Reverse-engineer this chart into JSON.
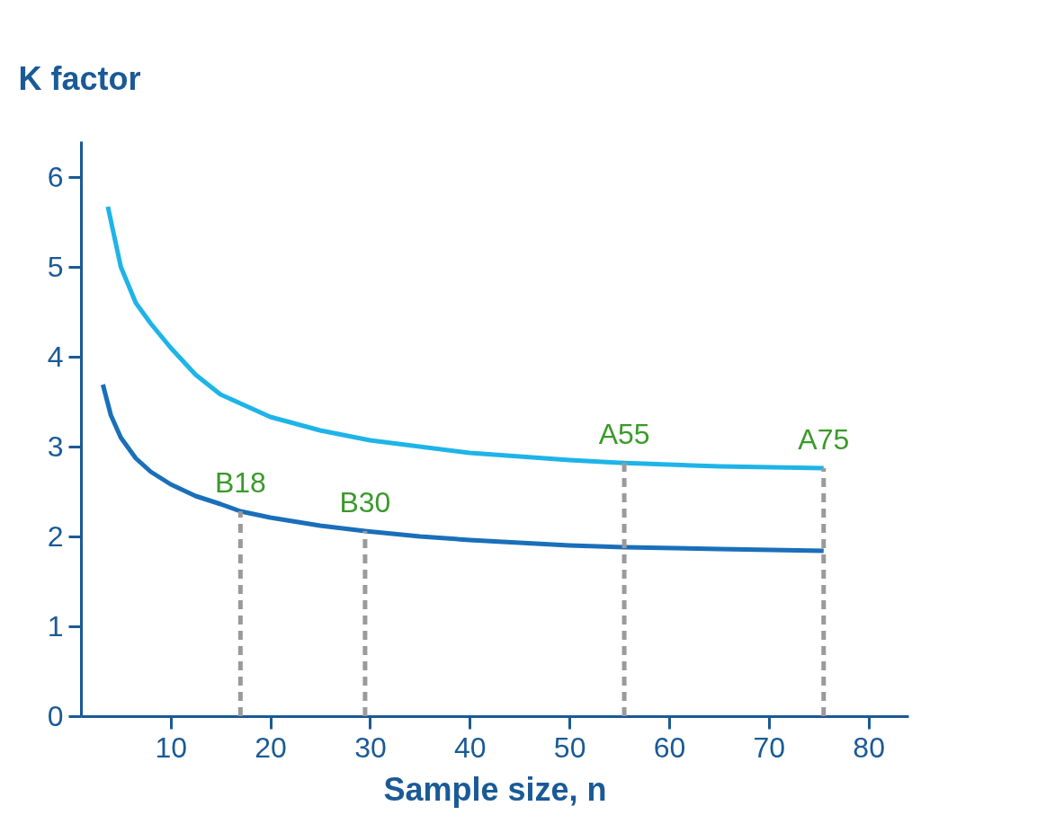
{
  "chart_data": {
    "type": "line",
    "xlabel": "Sample size, n",
    "ylabel": "K factor",
    "xlim": [
      1,
      84
    ],
    "ylim": [
      0,
      6.4
    ],
    "xticks": [
      10,
      20,
      30,
      40,
      50,
      60,
      70,
      80
    ],
    "yticks": [
      0,
      1,
      2,
      3,
      4,
      5,
      6
    ],
    "grid": false,
    "legend": false,
    "marker": "none",
    "series": [
      {
        "color": "#1eb4e8",
        "line_style": "solid",
        "x": [
          3.7,
          5,
          6.5,
          8,
          10,
          12.5,
          15,
          20,
          25,
          30,
          40,
          50,
          55,
          65,
          75.5
        ],
        "values": [
          5.67,
          5.0,
          4.6,
          4.37,
          4.1,
          3.8,
          3.58,
          3.33,
          3.18,
          3.07,
          2.93,
          2.85,
          2.82,
          2.78,
          2.76
        ]
      },
      {
        "color": "#1a6fba",
        "line_style": "solid",
        "x": [
          3.2,
          4,
          5,
          6.5,
          8,
          10,
          12.5,
          15,
          17,
          20,
          25,
          29.5,
          35,
          40,
          50,
          55.5,
          65,
          75.5
        ],
        "values": [
          3.69,
          3.35,
          3.1,
          2.87,
          2.72,
          2.58,
          2.45,
          2.36,
          2.28,
          2.21,
          2.12,
          2.06,
          2.0,
          1.96,
          1.9,
          1.88,
          1.86,
          1.84
        ]
      },
      {
        "color": "#9a9a9a",
        "line_style": "dashed",
        "x": [
          17,
          17
        ],
        "values": [
          0,
          2.28
        ]
      },
      {
        "color": "#9a9a9a",
        "line_style": "dashed",
        "x": [
          29.5,
          29.5
        ],
        "values": [
          0,
          2.06
        ]
      },
      {
        "color": "#9a9a9a",
        "line_style": "dashed",
        "x": [
          55.5,
          55.5
        ],
        "values": [
          0,
          2.82
        ]
      },
      {
        "color": "#9a9a9a",
        "line_style": "dashed",
        "x": [
          75.5,
          75.5
        ],
        "values": [
          0,
          2.76
        ]
      }
    ],
    "annotations": [
      {
        "text": "B18",
        "x": 17,
        "y": 2.28
      },
      {
        "text": "B30",
        "x": 29.5,
        "y": 2.06
      },
      {
        "text": "A55",
        "x": 55.5,
        "y": 2.82
      },
      {
        "text": "A75",
        "x": 75.5,
        "y": 2.76
      }
    ]
  }
}
